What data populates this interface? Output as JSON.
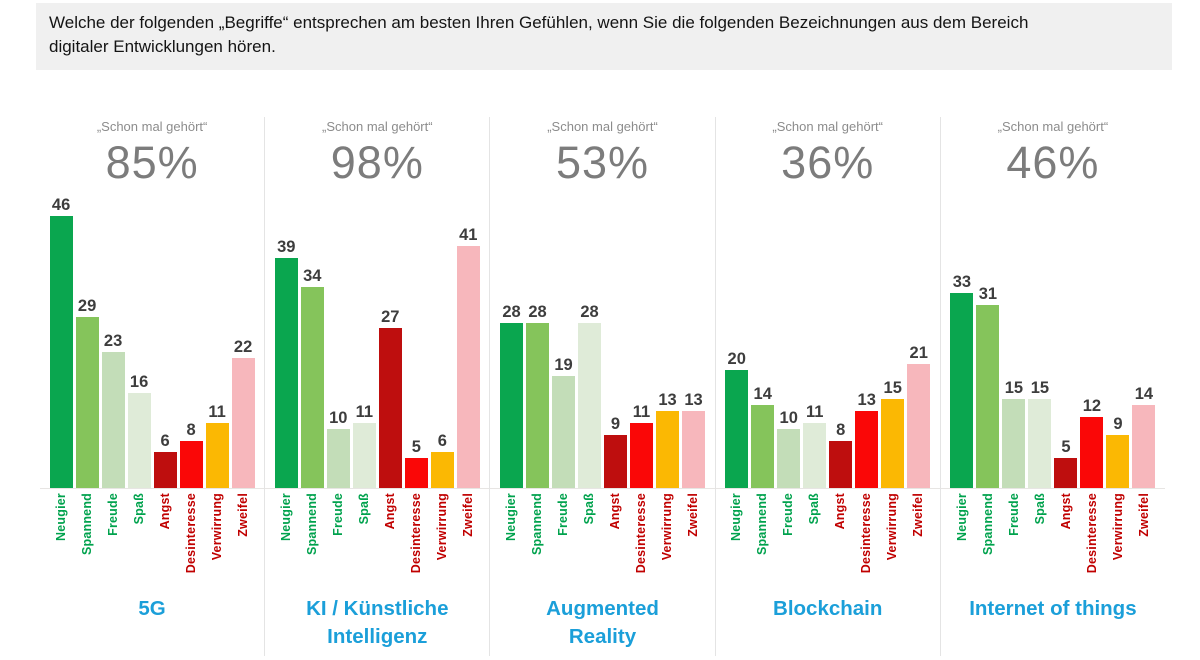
{
  "header": {
    "question": "Welche der folgenden „Begriffe“ entsprechen am besten Ihren Gefühlen, wenn Sie die folgenden Bezeichnungen aus dem Bereich digitaler Entwicklungen hören."
  },
  "colors": {
    "banner_bg": "#f0f0f0",
    "banner_text": "#141414",
    "heard_label_color": "#8c8c8c",
    "percent_color": "#7c7c7c",
    "value_label_color": "#3d3d3d",
    "title_color": "#1b9fd9",
    "divider_color": "#e4e4e4",
    "axis_color": "#e7e5e3"
  },
  "chart_data": {
    "type": "bar",
    "title": "",
    "heard_label": "„Schon mal gehört“",
    "categories": [
      "Neugier",
      "Spannend",
      "Freude",
      "Spaß",
      "Angst",
      "Desinteresse",
      "Verwirrung",
      "Zweifel"
    ],
    "bar_colors": [
      "#0aa64f",
      "#85c45b",
      "#c3ddb8",
      "#dfebd8",
      "#be0e0e",
      "#fa0707",
      "#fbb803",
      "#f7b7bc"
    ],
    "category_label_colors": [
      "#00a24d",
      "#00a24d",
      "#00a24d",
      "#00a24d",
      "#c00000",
      "#c00000",
      "#c00000",
      "#c00000"
    ],
    "ylim": [
      0,
      50
    ],
    "grid": false,
    "legend_position": "none",
    "value_labels": true,
    "x_tick_rotation": 90,
    "panels": [
      {
        "title": "5G",
        "heard_pct": "85%",
        "values": [
          46,
          29,
          23,
          16,
          6,
          8,
          11,
          22
        ]
      },
      {
        "title": "KI / Künstliche Intelligenz",
        "heard_pct": "98%",
        "values": [
          39,
          34,
          10,
          11,
          27,
          5,
          6,
          41
        ]
      },
      {
        "title": "Augmented Reality",
        "heard_pct": "53%",
        "values": [
          28,
          28,
          19,
          28,
          9,
          11,
          13,
          13
        ]
      },
      {
        "title": "Blockchain",
        "heard_pct": "36%",
        "values": [
          20,
          14,
          10,
          11,
          8,
          13,
          15,
          21
        ]
      },
      {
        "title": "Internet of things",
        "heard_pct": "46%",
        "values": [
          33,
          31,
          15,
          15,
          5,
          12,
          9,
          14
        ]
      }
    ]
  }
}
